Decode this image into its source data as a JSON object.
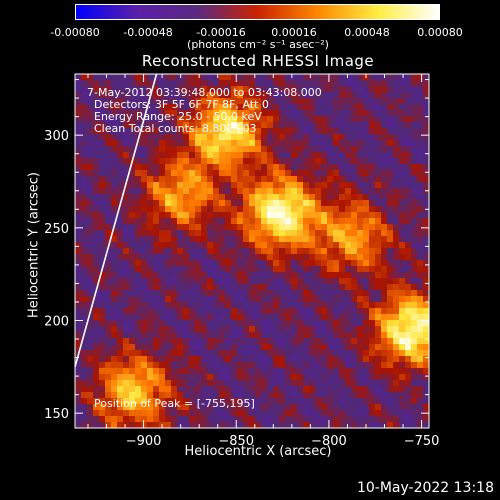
{
  "colorbar": {
    "tick_labels": [
      "-0.00080",
      "-0.00048",
      "-0.00016",
      "0.00016",
      "0.00048",
      "0.00080"
    ],
    "range": [
      -0.0008,
      0.0008
    ],
    "units_label": "(photons cm⁻² s⁻¹ asec⁻²)",
    "colors": [
      "#0000ff",
      "#5a1fa8",
      "#5a2a82",
      "#cc2200",
      "#ff8800",
      "#ffee44",
      "#ffffff"
    ]
  },
  "overlay": {
    "time_range": "7-May-2012 03:39:48.000 to 03:43:08.000",
    "detectors": "Detectors: 3F 5F 6F 7F 8F, Att 0",
    "energy_range": "Energy Range: 25.0 - 50.0 keV",
    "clean_counts": "Clean    Total counts: 8.80E+03",
    "peak_position": "Position of Peak = [-755,195]"
  },
  "footer": {
    "date_time": "10-May-2022 13:18"
  },
  "chart_data": {
    "type": "heatmap",
    "title": "Reconstructed RHESSI Image",
    "xlabel": "Heliocentric X (arcsec)",
    "ylabel": "Heliocentric Y (arcsec)",
    "xlim": [
      -937,
      -746
    ],
    "ylim": [
      142,
      333
    ],
    "x_ticks": [
      -900,
      -850,
      -800,
      -750
    ],
    "y_ticks": [
      150,
      200,
      250,
      300
    ],
    "x_tick_labels": [
      "−900",
      "−850",
      "−800",
      "−750"
    ],
    "y_tick_labels": [
      "150",
      "200",
      "250",
      "300"
    ],
    "colorscale_range": [
      -0.0008,
      0.0008
    ],
    "peak": [
      -755,
      195
    ],
    "bright_sources": [
      {
        "x": -855,
        "y": 302,
        "value": 0.0007
      },
      {
        "x": -826,
        "y": 258,
        "value": 0.0008
      },
      {
        "x": -880,
        "y": 268,
        "value": 0.0005
      },
      {
        "x": -787,
        "y": 245,
        "value": 0.0005
      },
      {
        "x": -755,
        "y": 195,
        "value": 0.0008
      },
      {
        "x": -905,
        "y": 162,
        "value": 0.0006
      }
    ]
  }
}
